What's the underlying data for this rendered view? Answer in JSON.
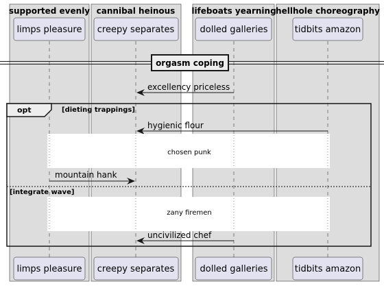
{
  "boxes": [
    {
      "title": "supported evenly"
    },
    {
      "title": "cannibal heinous"
    },
    {
      "title": "lifeboats yearning"
    },
    {
      "title": "hellhole choreography"
    }
  ],
  "participants": [
    {
      "name": "limps pleasure"
    },
    {
      "name": "creepy separates"
    },
    {
      "name": "dolled galleries"
    },
    {
      "name": "tidbits amazon"
    }
  ],
  "divider": {
    "label": "orgasm coping"
  },
  "messages": [
    {
      "label": "excellency priceless",
      "from": "dolled galleries",
      "to": "creepy separates"
    },
    {
      "label": "hygienic flour",
      "from": "tidbits amazon",
      "to": "creepy separates"
    },
    {
      "label": "mountain hank",
      "from": "limps pleasure",
      "to": "creepy separates"
    },
    {
      "label": "uncivilized chef",
      "from": "dolled galleries",
      "to": "creepy separates"
    }
  ],
  "delays": [
    {
      "label": "chosen punk"
    },
    {
      "label": "zany firemen"
    }
  ],
  "fragment": {
    "keyword": "opt",
    "condition": "[dieting trappings]",
    "else_condition": "[integrate wave]"
  },
  "colors": {
    "box_fill": "#dddddd",
    "participant_fill": "#e2e2f0",
    "participant_border": "#181818",
    "lifeline": "#181818"
  }
}
